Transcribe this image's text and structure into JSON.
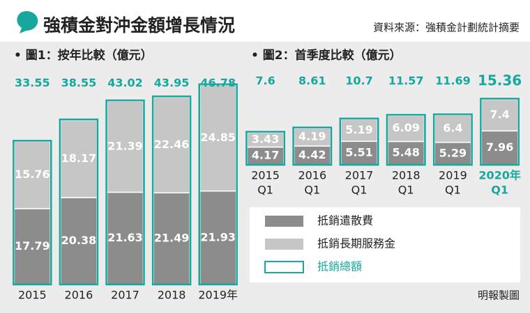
{
  "title": "強積金對沖金額增長情況",
  "source": "資料來源：強積金計劃統計摘要",
  "credit": "明報製圖",
  "chart_data": [
    {
      "type": "stacked-bar",
      "title": "• 圖1：按年比較（億元）",
      "categories": [
        [
          "2015"
        ],
        [
          "2016"
        ],
        [
          "2017"
        ],
        [
          "2018"
        ],
        [
          "2019年"
        ]
      ],
      "ylim": [
        0,
        50
      ],
      "series": [
        {
          "color": "#8c8c8c",
          "values": [
            17.79,
            20.38,
            21.63,
            21.49,
            21.93
          ]
        },
        {
          "color": "#c6c6c6",
          "values": [
            15.76,
            18.17,
            21.39,
            22.46,
            24.85
          ]
        }
      ],
      "totals": {
        "color": "#17a79d",
        "values": [
          33.55,
          38.55,
          43.02,
          43.95,
          46.78
        ]
      }
    },
    {
      "type": "stacked-bar",
      "title": "• 圖2：首季度比較（億元）",
      "categories": [
        [
          "2015",
          "Q1"
        ],
        [
          "2016",
          "Q1"
        ],
        [
          "2017",
          "Q1"
        ],
        [
          "2018",
          "Q1"
        ],
        [
          "2019",
          "Q1"
        ],
        [
          "2020年",
          "Q1"
        ]
      ],
      "ylim": [
        0,
        50
      ],
      "highlight": 5,
      "series": [
        {
          "name": "抵銷遣散費",
          "color": "#8c8c8c",
          "values": [
            4.17,
            4.42,
            5.51,
            5.48,
            5.29,
            7.96
          ]
        },
        {
          "name": "抵銷長期服務金",
          "color": "#c6c6c6",
          "values": [
            3.43,
            4.19,
            5.19,
            6.09,
            6.4,
            7.4
          ]
        }
      ],
      "totals": {
        "name": "抵銷總額",
        "color": "#17a79d",
        "values": [
          7.6,
          8.61,
          10.7,
          11.57,
          11.69,
          15.36
        ]
      }
    }
  ]
}
